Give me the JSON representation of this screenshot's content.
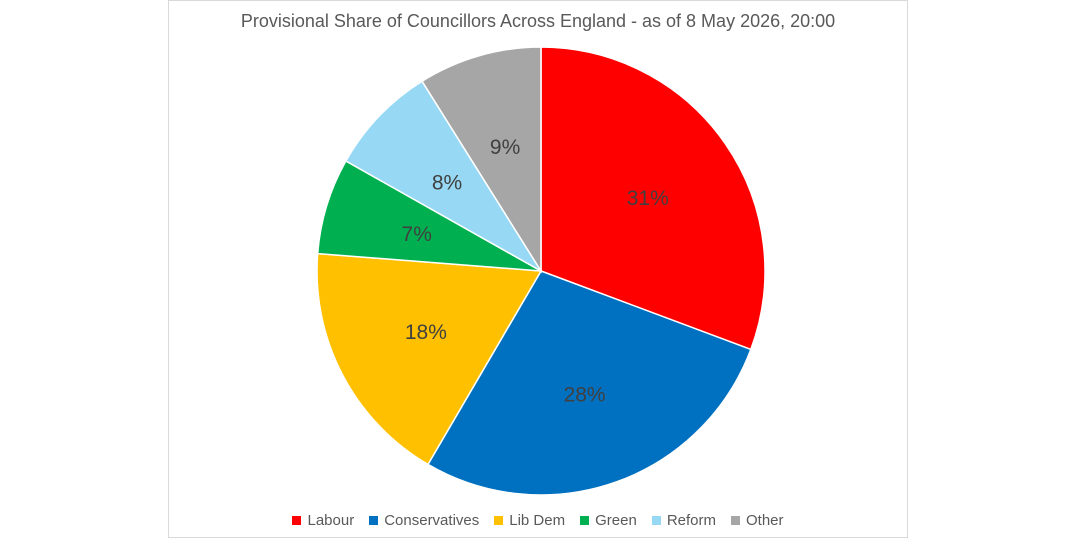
{
  "chart_data": {
    "type": "pie",
    "title": "Provisional Share of Councillors Across England - as of 8 May 2026, 20:00",
    "categories": [
      "Labour",
      "Conservatives",
      "Lib Dem",
      "Green",
      "Reform",
      "Other"
    ],
    "values": [
      31,
      28,
      18,
      7,
      8,
      9
    ],
    "data_labels": [
      "31%",
      "28%",
      "18%",
      "7%",
      "8%",
      "9%"
    ],
    "colors": [
      "#ff0000",
      "#0070c0",
      "#ffc000",
      "#00b050",
      "#97d9f5",
      "#a6a6a6"
    ],
    "legend_position": "bottom",
    "start_angle": "12 o'clock, clockwise"
  }
}
